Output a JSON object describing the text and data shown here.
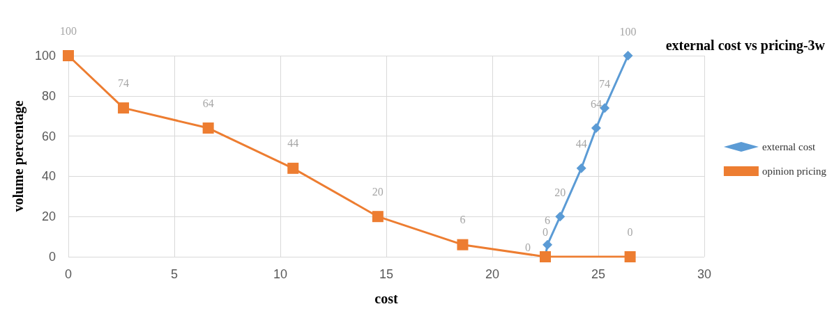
{
  "chart_data": {
    "type": "line",
    "title": "external cost vs pricing-3w",
    "xlabel": "cost",
    "ylabel": "volume percentage",
    "xlim": [
      0,
      30
    ],
    "xticks": [
      0,
      5,
      10,
      15,
      20,
      25,
      30
    ],
    "ylim": [
      0,
      100
    ],
    "yticks": [
      0,
      20,
      40,
      60,
      80,
      100
    ],
    "grid": true,
    "legend": "right",
    "data_labels": true,
    "series": [
      {
        "name": "external cost",
        "color": "#5b9bd5",
        "marker": "diamond",
        "x": [
          22.5,
          22.6,
          23.2,
          24.2,
          24.9,
          25.3,
          26.4
        ],
        "values": [
          0,
          6,
          20,
          44,
          64,
          74,
          100
        ]
      },
      {
        "name": "opinion pricing",
        "color": "#ed7d31",
        "marker": "square",
        "x": [
          0,
          2.6,
          6.6,
          10.6,
          14.6,
          18.6,
          22.5,
          26.5
        ],
        "values": [
          100,
          74,
          64,
          44,
          20,
          6,
          0,
          0
        ]
      }
    ]
  }
}
